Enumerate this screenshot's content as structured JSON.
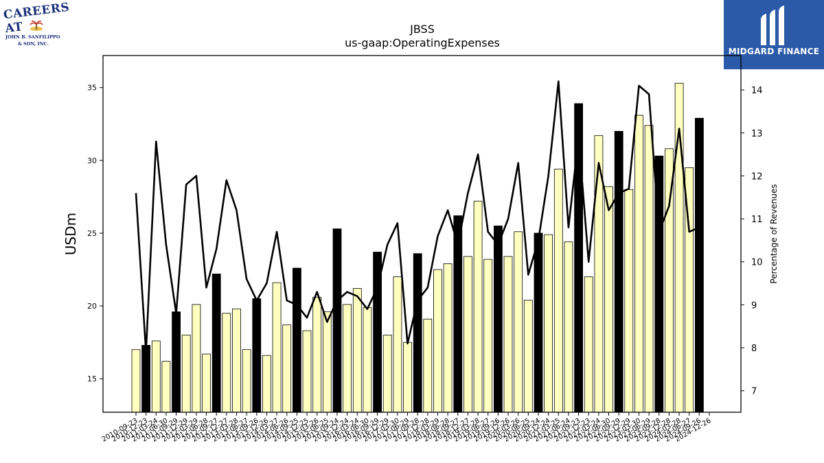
{
  "logos": {
    "left_line1": "CAREERS AT",
    "left_line2": "JOHN B. SANFILIPPO",
    "left_line3": "& SON, INC.",
    "right_text": "MIDGARD FINANCE",
    "right_bg": "#2b5aa8"
  },
  "chart_data": {
    "type": "bar",
    "title": "JBSS",
    "subtitle": "us-gaap:OperatingExpenses",
    "ylabel": "USDm",
    "y2label": "Percentage of Revenues",
    "ylim": [
      12.7,
      37.2
    ],
    "y2lim": [
      6.5,
      14.8
    ],
    "yticks": [
      15,
      20,
      25,
      30,
      35
    ],
    "y2ticks": [
      7,
      8,
      9,
      10,
      11,
      12,
      13,
      14
    ],
    "colors": {
      "bar_quarter": "#ffffc0",
      "bar_annual": "#000000",
      "line": "#000000"
    },
    "categories": [
      "2010-09-23",
      "2010-12-23",
      "2011-03-24",
      "2011-06-30",
      "2011-09-29",
      "2011-12-29",
      "2012-03-29",
      "2012-06-28",
      "2012-09-27",
      "2012-12-27",
      "2013-03-28",
      "2013-06-27",
      "2013-09-26",
      "2013-12-26",
      "2014-03-27",
      "2014-06-26",
      "2014-09-25",
      "2014-12-25",
      "2015-03-26",
      "2015-06-25",
      "2015-09-24",
      "2015-12-24",
      "2016-03-24",
      "2016-06-30",
      "2016-09-29",
      "2016-12-29",
      "2017-03-30",
      "2017-06-29",
      "2017-09-28",
      "2017-12-28",
      "2018-03-29",
      "2018-06-28",
      "2018-09-27",
      "2018-12-27",
      "2019-03-28",
      "2019-06-27",
      "2019-09-26",
      "2019-12-26",
      "2020-03-26",
      "2020-06-25",
      "2020-09-24",
      "2020-12-24",
      "2021-03-25",
      "2021-06-24",
      "2021-09-23",
      "2021-12-23",
      "2022-03-24",
      "2022-06-30",
      "2022-09-29",
      "2022-12-29",
      "2023-03-30",
      "2023-06-29",
      "2023-09-28",
      "2023-12-28",
      "2024-03-28",
      "2024-06-27",
      "2024-09-26",
      "2024-12-26"
    ],
    "xtick_labels": [
      "2010-09-23",
      "2010-12-23",
      "2011-03-24",
      "2011-06-30",
      "2011-09-29",
      "2011-12-29",
      "2012-03-29",
      "2012-06-28",
      "2012-09-27",
      "2012-12-27",
      "2013-03-28",
      "2013-06-27",
      "2013-09-26",
      "2013-12-26",
      "2014-03-27",
      "2014-06-26",
      "2014-09-25",
      "2014-12-25",
      "2015-03-26",
      "2015-06-25",
      "2015-09-24",
      "2015-12-24",
      "2016-03-24",
      "2016-06-30",
      "2016-09-29",
      "2016-12-29",
      "2017-03-30",
      "2017-06-29",
      "2017-09-28",
      "2017-12-28",
      "2018-03-29",
      "2018-06-28",
      "2018-09-27",
      "2018-12-27",
      "2019-03-28",
      "2019-06-27",
      "2019-09-26",
      "2019-12-26",
      "2020-03-26",
      "2020-06-25",
      "2020-09-24",
      "2020-12-24",
      "2021-03-25",
      "2021-06-24",
      "2021-09-23",
      "2021-12-23",
      "2022-03-24",
      "2022-06-30",
      "2022-09-29",
      "2022-12-29",
      "2023-03-30",
      "2023-06-29",
      "2023-09-28",
      "2023-12-28",
      "2024-03-28",
      "2024-06-27",
      "2024-09-26",
      "2024-12-26"
    ],
    "annual": [
      false,
      true,
      false,
      false,
      true,
      false,
      false,
      false,
      true,
      false,
      false,
      false,
      true,
      false,
      false,
      false,
      true,
      false,
      false,
      false,
      true,
      false,
      false,
      false,
      true,
      false,
      false,
      false,
      true,
      false,
      false,
      false,
      true,
      false,
      false,
      false,
      true,
      false,
      false,
      false,
      true,
      false,
      false,
      false,
      true,
      false,
      false,
      false,
      true,
      false,
      false,
      false,
      true,
      false,
      false,
      false,
      true,
      false
    ],
    "series": [
      {
        "name": "OperatingExpenses",
        "axis": "left",
        "values": [
          17.0,
          17.3,
          17.6,
          16.2,
          19.6,
          18.0,
          20.1,
          16.7,
          22.2,
          19.5,
          19.8,
          17.0,
          20.5,
          16.6,
          21.6,
          18.7,
          22.6,
          18.3,
          20.6,
          19.6,
          25.3,
          20.1,
          21.2,
          19.9,
          23.7,
          18.0,
          22.0,
          17.5,
          23.6,
          19.1,
          22.5,
          22.9,
          26.2,
          23.4,
          27.2,
          23.2,
          25.5,
          23.4,
          25.1,
          20.4,
          25.0,
          24.9,
          29.4,
          24.4,
          33.9,
          22.0,
          31.7,
          28.2,
          32.0,
          28.0,
          33.1,
          32.4,
          30.3,
          30.8,
          35.3,
          29.5,
          32.9,
          null
        ]
      },
      {
        "name": "PercentOfRevenues",
        "axis": "right",
        "values": [
          11.6,
          7.9,
          12.8,
          10.4,
          8.8,
          11.8,
          12.0,
          9.4,
          10.3,
          11.9,
          11.2,
          9.6,
          9.1,
          9.5,
          10.7,
          9.1,
          9.0,
          8.7,
          9.3,
          8.6,
          9.1,
          9.3,
          9.2,
          8.9,
          9.4,
          10.4,
          10.9,
          8.1,
          9.1,
          9.4,
          10.6,
          11.2,
          10.4,
          11.6,
          12.5,
          10.7,
          10.4,
          11.0,
          12.3,
          9.7,
          10.5,
          12.0,
          14.2,
          10.8,
          12.9,
          10.0,
          12.3,
          11.2,
          11.6,
          11.7,
          14.1,
          13.9,
          10.7,
          11.3,
          13.1,
          10.7,
          10.8,
          null
        ]
      }
    ],
    "grid": false,
    "legend": "none"
  }
}
